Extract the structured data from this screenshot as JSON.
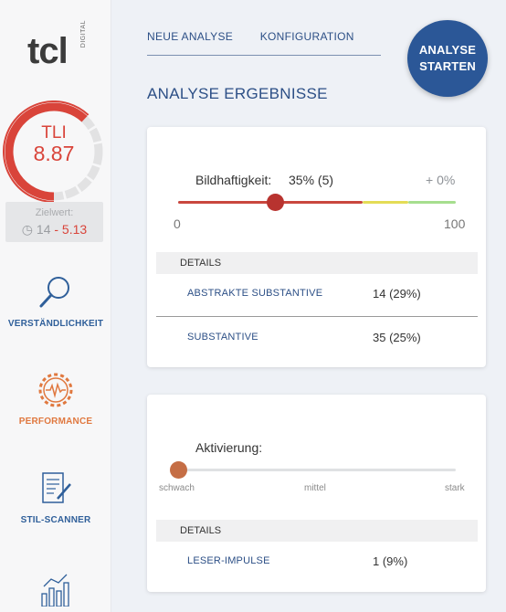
{
  "brand": {
    "logo_text": "tcl",
    "logo_sub": "DIGITAL"
  },
  "score": {
    "label": "TLI",
    "value": "8.87",
    "fraction": 0.62
  },
  "target": {
    "label": "Zielwert:",
    "low": "14",
    "high": "- 5.13"
  },
  "sidebar": {
    "items": [
      {
        "label": "VERSTÄNDLICHKEIT",
        "icon": "magnifier-icon",
        "color": "#2f5f9a"
      },
      {
        "label": "PERFORMANCE",
        "icon": "gear-pulse-icon",
        "color": "#e0783f"
      },
      {
        "label": "STIL-SCANNER",
        "icon": "document-pen-icon",
        "color": "#2f5f9a"
      },
      {
        "icon": "bar-chart-icon"
      }
    ]
  },
  "topnav": {
    "tab1": "NEUE ANALYSE",
    "tab2": "KONFIGURATION"
  },
  "start_button": {
    "line1": "ANALYSE",
    "line2": "STARTEN"
  },
  "section_title": "ANALYSE ERGEBNISSE",
  "card1": {
    "metric_label": "Bildhaftigkeit:",
    "metric_value": "35% (5)",
    "delta": "+ 0%",
    "slider_fraction": 0.35,
    "scale_min": "0",
    "scale_max": "100",
    "details_header": "DETAILS",
    "rows": [
      {
        "name": "ABSTRAKTE SUBSTANTIVE",
        "value": "14 (29%)"
      },
      {
        "name": "SUBSTANTIVE",
        "value": "35 (25%)"
      }
    ]
  },
  "card2": {
    "metric_label": "Aktivierung:",
    "slider_fraction": 0.0,
    "scale": [
      "schwach",
      "mittel",
      "stark"
    ],
    "details_header": "DETAILS",
    "rows": [
      {
        "name": "LESER-IMPULSE",
        "value": "1 (9%)"
      }
    ]
  },
  "colors": {
    "brand_blue": "#2b5797",
    "alert_red": "#d9443a",
    "accent_orange": "#e0783f"
  }
}
